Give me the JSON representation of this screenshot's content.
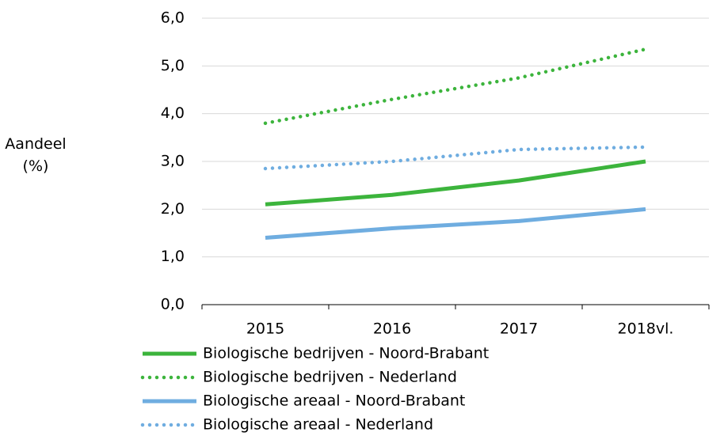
{
  "chart_data": {
    "type": "line",
    "ylabel": "Aandeel (%)",
    "categories": [
      "2015",
      "2016",
      "2017",
      "2018vl."
    ],
    "series": [
      {
        "name": "Biologische bedrijven - Noord-Brabant",
        "color": "#3cb43c",
        "dash": "solid",
        "values": [
          2.1,
          2.3,
          2.6,
          3.0
        ]
      },
      {
        "name": "Biologische bedrijven - Nederland",
        "color": "#3cb43c",
        "dash": "dotted",
        "values": [
          3.8,
          4.3,
          4.75,
          5.35
        ]
      },
      {
        "name": "Biologische areaal - Noord-Brabant",
        "color": "#6fade0",
        "dash": "solid",
        "values": [
          1.4,
          1.6,
          1.75,
          2.0
        ]
      },
      {
        "name": "Biologische areaal - Nederland",
        "color": "#6fade0",
        "dash": "dotted",
        "values": [
          2.85,
          3.0,
          3.25,
          3.3
        ]
      }
    ],
    "ylim": [
      0,
      6
    ],
    "yticks": [
      {
        "value": 0,
        "label": "0,0"
      },
      {
        "value": 1,
        "label": "1,0"
      },
      {
        "value": 2,
        "label": "2,0"
      },
      {
        "value": 3,
        "label": "3,0"
      },
      {
        "value": 4,
        "label": "4,0"
      },
      {
        "value": 5,
        "label": "5,0"
      },
      {
        "value": 6,
        "label": "6,0"
      }
    ],
    "grid": true
  }
}
